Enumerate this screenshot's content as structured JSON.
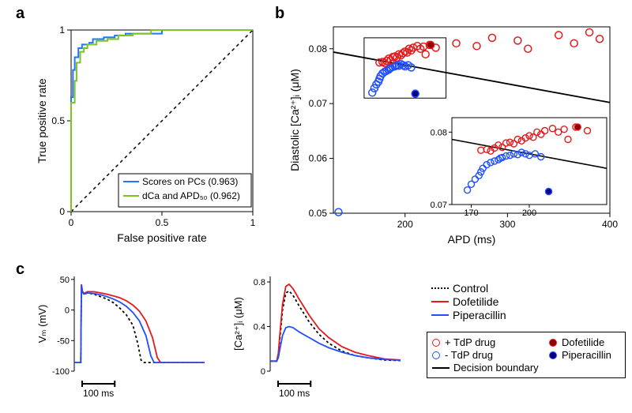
{
  "labels": {
    "a": "a",
    "b": "b",
    "c": "c"
  },
  "panelA": {
    "type": "roc-line",
    "xlabel": "False positive rate",
    "ylabel": "True positive rate",
    "xlim": [
      0,
      1
    ],
    "ylim": [
      0,
      1
    ],
    "xticks": [
      0,
      0.5,
      1
    ],
    "yticks": [
      0,
      0.5,
      1
    ],
    "diagonal_color": "#000000",
    "diagonal_dash": "4,4",
    "series": [
      {
        "name": "scores-pcs",
        "label": "Scores on PCs (0.963)",
        "color": "#1f77ff",
        "points": [
          [
            0,
            0
          ],
          [
            0,
            0.63
          ],
          [
            0.01,
            0.63
          ],
          [
            0.01,
            0.78
          ],
          [
            0.02,
            0.78
          ],
          [
            0.02,
            0.85
          ],
          [
            0.04,
            0.85
          ],
          [
            0.04,
            0.9
          ],
          [
            0.06,
            0.9
          ],
          [
            0.06,
            0.92
          ],
          [
            0.1,
            0.92
          ],
          [
            0.1,
            0.93
          ],
          [
            0.12,
            0.93
          ],
          [
            0.12,
            0.95
          ],
          [
            0.18,
            0.95
          ],
          [
            0.18,
            0.96
          ],
          [
            0.24,
            0.96
          ],
          [
            0.24,
            0.97
          ],
          [
            0.3,
            0.97
          ],
          [
            0.3,
            0.98
          ],
          [
            0.5,
            0.98
          ],
          [
            0.5,
            1.0
          ],
          [
            1.0,
            1.0
          ]
        ]
      },
      {
        "name": "dca-apd50",
        "label": "dCa and APD₅₀ (0.962)",
        "color": "#7fc41c",
        "points": [
          [
            0,
            0
          ],
          [
            0,
            0.6
          ],
          [
            0.02,
            0.6
          ],
          [
            0.02,
            0.72
          ],
          [
            0.03,
            0.72
          ],
          [
            0.03,
            0.82
          ],
          [
            0.05,
            0.82
          ],
          [
            0.05,
            0.88
          ],
          [
            0.07,
            0.88
          ],
          [
            0.07,
            0.9
          ],
          [
            0.09,
            0.9
          ],
          [
            0.09,
            0.92
          ],
          [
            0.14,
            0.92
          ],
          [
            0.14,
            0.94
          ],
          [
            0.2,
            0.94
          ],
          [
            0.2,
            0.95
          ],
          [
            0.26,
            0.95
          ],
          [
            0.26,
            0.97
          ],
          [
            0.34,
            0.97
          ],
          [
            0.34,
            0.98
          ],
          [
            0.44,
            0.98
          ],
          [
            0.44,
            1.0
          ],
          [
            1.0,
            1.0
          ]
        ]
      }
    ],
    "legend_border": "#000000"
  },
  "panelB": {
    "type": "scatter",
    "xlabel": "APD (ms)",
    "ylabel": "Diastolic [Ca²⁺]ᵢ (μM)",
    "xlim": [
      130,
      400
    ],
    "ylim": [
      0.05,
      0.084
    ],
    "xticks": [
      200,
      300,
      400
    ],
    "yticks": [
      0.05,
      0.06,
      0.07,
      0.08
    ],
    "marker_stroke_width": 1.5,
    "marker_radius": 4.5,
    "colors": {
      "pos": "#e41a1c",
      "neg": "#1f4fff",
      "dofetilide_fill": "#8b0000",
      "piperacillin_fill": "#000080",
      "boundary": "#000000"
    },
    "pos_points": [
      [
        175,
        0.0775
      ],
      [
        178,
        0.0776
      ],
      [
        180,
        0.0774
      ],
      [
        182,
        0.0778
      ],
      [
        184,
        0.0782
      ],
      [
        186,
        0.0779
      ],
      [
        188,
        0.0785
      ],
      [
        190,
        0.0786
      ],
      [
        192,
        0.0784
      ],
      [
        194,
        0.079
      ],
      [
        196,
        0.0788
      ],
      [
        198,
        0.0792
      ],
      [
        200,
        0.0795
      ],
      [
        202,
        0.0793
      ],
      [
        204,
        0.08
      ],
      [
        206,
        0.0797
      ],
      [
        208,
        0.0802
      ],
      [
        212,
        0.0805
      ],
      [
        215,
        0.08
      ],
      [
        218,
        0.0804
      ],
      [
        220,
        0.079
      ],
      [
        224,
        0.0807
      ],
      [
        230,
        0.0802
      ],
      [
        250,
        0.081
      ],
      [
        270,
        0.0805
      ],
      [
        285,
        0.082
      ],
      [
        310,
        0.0815
      ],
      [
        320,
        0.08
      ],
      [
        350,
        0.0825
      ],
      [
        365,
        0.081
      ],
      [
        380,
        0.083
      ],
      [
        390,
        0.0818
      ]
    ],
    "neg_points": [
      [
        135,
        0.0502
      ],
      [
        168,
        0.072
      ],
      [
        170,
        0.0728
      ],
      [
        172,
        0.0735
      ],
      [
        174,
        0.074
      ],
      [
        175,
        0.0745
      ],
      [
        176,
        0.075
      ],
      [
        178,
        0.0755
      ],
      [
        180,
        0.0758
      ],
      [
        182,
        0.076
      ],
      [
        184,
        0.0762
      ],
      [
        185,
        0.0764
      ],
      [
        186,
        0.0765
      ],
      [
        188,
        0.0767
      ],
      [
        190,
        0.0768
      ],
      [
        192,
        0.077
      ],
      [
        194,
        0.0769
      ],
      [
        196,
        0.0772
      ],
      [
        198,
        0.077
      ],
      [
        200,
        0.0768
      ],
      [
        203,
        0.077
      ],
      [
        206,
        0.0766
      ],
      [
        210,
        0.0718
      ]
    ],
    "dofetilide_point": [
      225,
      0.0807
    ],
    "piperacillin_point": [
      210,
      0.0718
    ],
    "decision_boundary": [
      [
        130,
        0.0794
      ],
      [
        400,
        0.0702
      ]
    ],
    "inset_box": [
      160,
      0.071,
      240,
      0.082
    ],
    "inset": {
      "xlim": [
        160,
        240
      ],
      "ylim": [
        0.07,
        0.082
      ],
      "xticks": [
        170,
        200
      ],
      "yticks": [
        0.07,
        0.08
      ],
      "decision_boundary": [
        [
          160,
          0.079
        ],
        [
          240,
          0.075
        ]
      ]
    }
  },
  "panelC": {
    "left": {
      "type": "line",
      "ylabel": "Vₘ (mV)",
      "xlim": [
        0,
        400
      ],
      "ylim": [
        -100,
        55
      ],
      "yticks": [
        -100,
        -50,
        0,
        50
      ],
      "scalebar_label": "100 ms",
      "series": {
        "control": {
          "color": "#000000",
          "dash": "3,3",
          "points": [
            [
              0,
              -86
            ],
            [
              20,
              -86
            ],
            [
              22,
              40
            ],
            [
              25,
              30
            ],
            [
              30,
              25
            ],
            [
              40,
              28
            ],
            [
              60,
              26
            ],
            [
              80,
              22
            ],
            [
              100,
              18
            ],
            [
              120,
              12
            ],
            [
              140,
              3
            ],
            [
              160,
              -8
            ],
            [
              180,
              -25
            ],
            [
              195,
              -55
            ],
            [
              205,
              -82
            ],
            [
              215,
              -86
            ],
            [
              400,
              -86
            ]
          ]
        },
        "dofetilide": {
          "color": "#e41a1c",
          "points": [
            [
              0,
              -86
            ],
            [
              20,
              -86
            ],
            [
              22,
              42
            ],
            [
              25,
              31
            ],
            [
              30,
              27
            ],
            [
              40,
              30
            ],
            [
              60,
              30
            ],
            [
              80,
              28
            ],
            [
              100,
              26
            ],
            [
              120,
              23
            ],
            [
              140,
              20
            ],
            [
              160,
              15
            ],
            [
              180,
              8
            ],
            [
              200,
              -2
            ],
            [
              220,
              -18
            ],
            [
              240,
              -45
            ],
            [
              255,
              -78
            ],
            [
              265,
              -86
            ],
            [
              400,
              -86
            ]
          ]
        },
        "piperacillin": {
          "color": "#1f4fff",
          "points": [
            [
              0,
              -86
            ],
            [
              20,
              -86
            ],
            [
              22,
              41
            ],
            [
              25,
              30
            ],
            [
              30,
              26
            ],
            [
              40,
              28
            ],
            [
              60,
              27
            ],
            [
              80,
              25
            ],
            [
              100,
              22
            ],
            [
              120,
              18
            ],
            [
              140,
              13
            ],
            [
              160,
              6
            ],
            [
              180,
              -4
            ],
            [
              200,
              -18
            ],
            [
              220,
              -42
            ],
            [
              235,
              -75
            ],
            [
              245,
              -86
            ],
            [
              400,
              -86
            ]
          ]
        }
      }
    },
    "right": {
      "type": "line",
      "ylabel": "[Ca²⁺]ᵢ (μM)",
      "xlim": [
        0,
        400
      ],
      "ylim": [
        0,
        0.85
      ],
      "yticks": [
        0,
        0.4,
        0.8
      ],
      "scalebar_label": "100 ms",
      "series": {
        "control": {
          "color": "#000000",
          "dash": "3,3",
          "points": [
            [
              0,
              0.09
            ],
            [
              20,
              0.09
            ],
            [
              25,
              0.15
            ],
            [
              30,
              0.3
            ],
            [
              38,
              0.55
            ],
            [
              48,
              0.7
            ],
            [
              58,
              0.72
            ],
            [
              70,
              0.68
            ],
            [
              90,
              0.58
            ],
            [
              120,
              0.44
            ],
            [
              150,
              0.33
            ],
            [
              180,
              0.25
            ],
            [
              220,
              0.18
            ],
            [
              260,
              0.14
            ],
            [
              300,
              0.12
            ],
            [
              350,
              0.1
            ],
            [
              400,
              0.095
            ]
          ]
        },
        "dofetilide": {
          "color": "#e41a1c",
          "points": [
            [
              0,
              0.09
            ],
            [
              20,
              0.09
            ],
            [
              25,
              0.16
            ],
            [
              30,
              0.34
            ],
            [
              38,
              0.6
            ],
            [
              48,
              0.76
            ],
            [
              58,
              0.78
            ],
            [
              70,
              0.74
            ],
            [
              90,
              0.64
            ],
            [
              120,
              0.5
            ],
            [
              150,
              0.38
            ],
            [
              180,
              0.3
            ],
            [
              220,
              0.22
            ],
            [
              260,
              0.17
            ],
            [
              300,
              0.14
            ],
            [
              350,
              0.11
            ],
            [
              400,
              0.1
            ]
          ]
        },
        "piperacillin": {
          "color": "#1f4fff",
          "points": [
            [
              0,
              0.09
            ],
            [
              20,
              0.09
            ],
            [
              25,
              0.12
            ],
            [
              30,
              0.2
            ],
            [
              38,
              0.32
            ],
            [
              48,
              0.39
            ],
            [
              58,
              0.4
            ],
            [
              70,
              0.39
            ],
            [
              90,
              0.35
            ],
            [
              120,
              0.3
            ],
            [
              150,
              0.25
            ],
            [
              180,
              0.21
            ],
            [
              220,
              0.17
            ],
            [
              260,
              0.14
            ],
            [
              300,
              0.12
            ],
            [
              350,
              0.105
            ],
            [
              400,
              0.098
            ]
          ]
        }
      }
    },
    "legend": {
      "control": "Control",
      "dofetilide": "Dofetilide",
      "piperacillin": "Piperacillin"
    }
  },
  "legendB": {
    "pos": "+ TdP drug",
    "neg": "- TdP drug",
    "boundary": "Decision boundary",
    "dofetilide": "Dofetilide",
    "piperacillin": "Piperacillin"
  }
}
